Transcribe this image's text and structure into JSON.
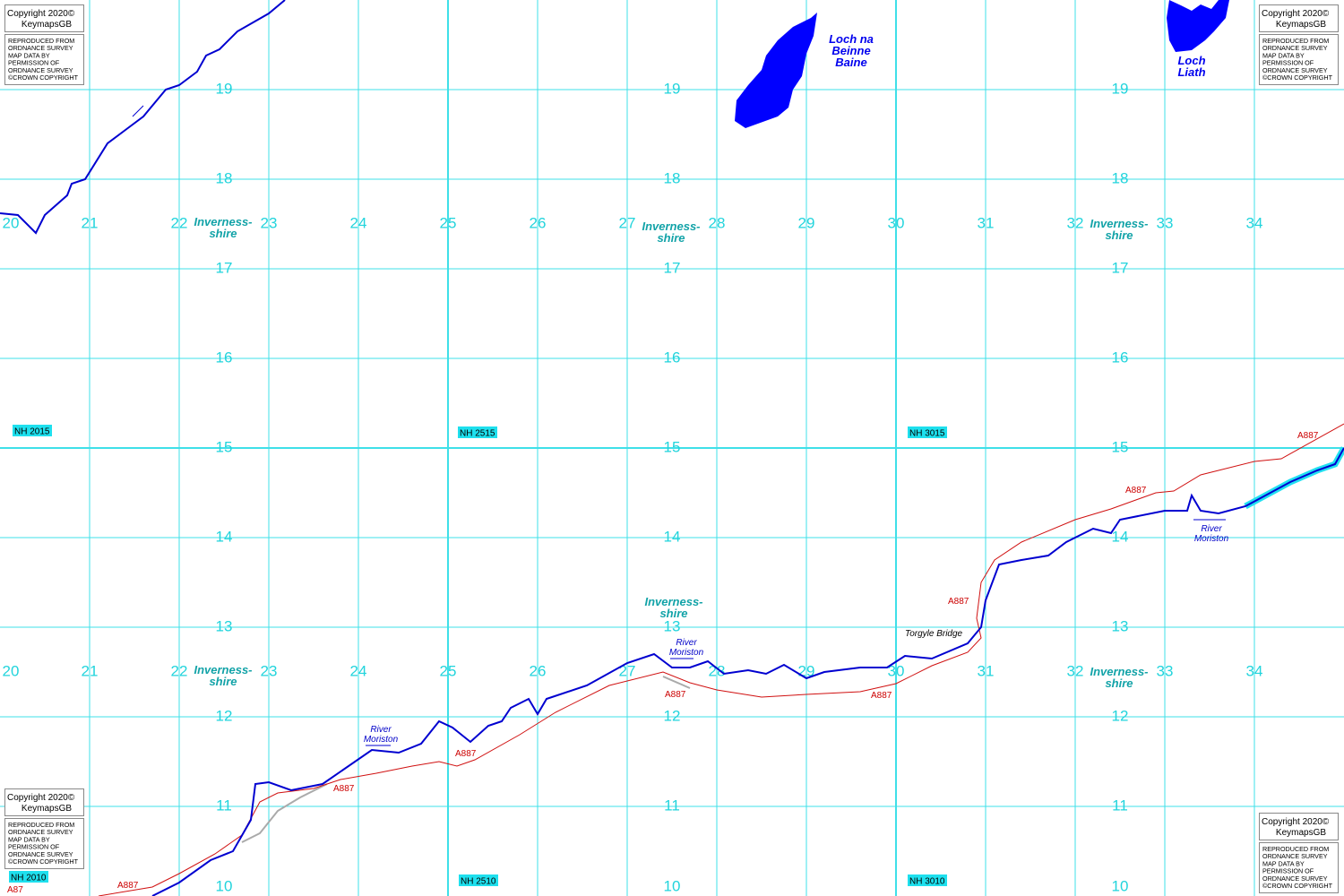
{
  "grid": {
    "eastings": [
      20,
      21,
      22,
      23,
      24,
      25,
      26,
      27,
      28,
      29,
      30,
      31,
      32,
      33,
      34
    ],
    "northings": [
      10,
      11,
      12,
      13,
      14,
      15,
      16,
      17,
      18,
      19
    ]
  },
  "tiles": [
    "NH 2015",
    "NH 2515",
    "NH 3015",
    "NH 2010",
    "NH 2510",
    "NH 3010"
  ],
  "copyright": {
    "title": "Copyright 2020©",
    "brand": "KeymapsGB",
    "notice": [
      "REPRODUCED FROM",
      "ORDNANCE SURVEY",
      "MAP DATA BY",
      "PERMISSION OF",
      "ORDNANCE SURVEY",
      "©CROWN COPYRIGHT"
    ]
  },
  "places": {
    "loch_na_beinne_baine": [
      "Loch na",
      "Beinne",
      "Baine"
    ],
    "loch_liath": [
      "Loch",
      "Liath"
    ],
    "county": [
      "Inverness-",
      "shire"
    ],
    "river": [
      "River",
      "Moriston"
    ],
    "bridge": "Torgyle Bridge",
    "road_a887": "A887",
    "road_a87": "A87"
  }
}
